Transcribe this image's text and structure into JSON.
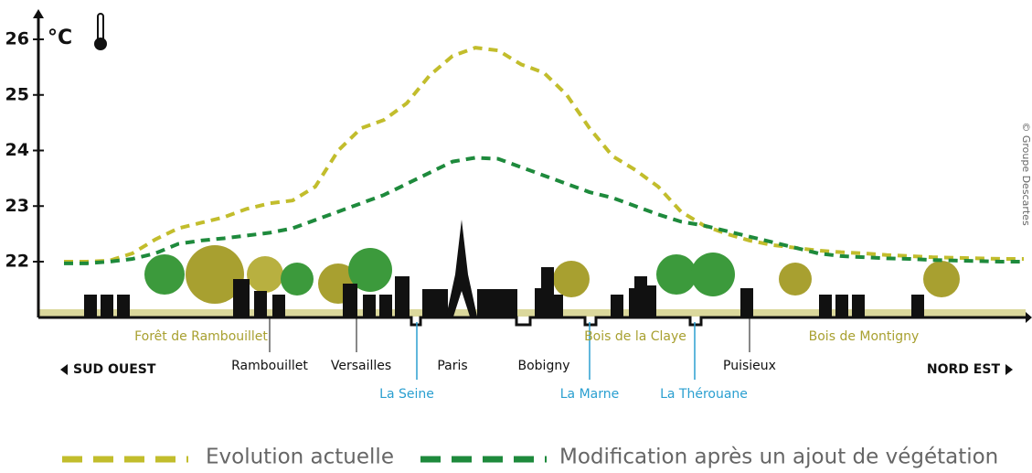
{
  "chart_data": {
    "type": "line",
    "unit": "°C",
    "direction_left": "SUD OUEST",
    "direction_right": "NORD EST",
    "credit": "© Groupe Descartes",
    "categories": [
      null,
      null,
      null,
      null,
      null,
      null,
      "Forêt de Rambouillet",
      null,
      null,
      "Rambouillet",
      null,
      null,
      null,
      "Versailles",
      null,
      "La Seine",
      null,
      "Paris",
      null,
      null,
      null,
      "Bobigny",
      null,
      "La Marne",
      null,
      "Bois de la Claye",
      null,
      null,
      "La Thérouane",
      null,
      "Puisieux",
      null,
      null,
      null,
      null,
      "Bois de Montigny",
      null,
      null,
      null,
      null,
      null,
      null,
      null
    ],
    "category_colors": [
      null,
      null,
      null,
      null,
      null,
      null,
      "#a8a030",
      null,
      null,
      "#111111",
      null,
      null,
      null,
      "#111111",
      null,
      "#2a9fd0",
      null,
      "#111111",
      null,
      null,
      null,
      "#111111",
      null,
      "#2a9fd0",
      null,
      "#a8a030",
      null,
      null,
      "#2a9fd0",
      null,
      "#111111",
      null,
      null,
      null,
      null,
      "#a8a030",
      null,
      null,
      null,
      null,
      null,
      null,
      null
    ],
    "series": [
      {
        "name": "Evolution actuelle",
        "color": "#c2bd2c",
        "values": [
          22.0,
          22.0,
          22.02,
          22.15,
          22.4,
          22.6,
          22.7,
          22.8,
          22.95,
          23.05,
          23.1,
          23.35,
          24.0,
          24.4,
          24.55,
          24.85,
          25.35,
          25.7,
          25.85,
          25.8,
          25.55,
          25.4,
          25.0,
          24.4,
          23.9,
          23.65,
          23.35,
          22.9,
          22.65,
          22.5,
          22.38,
          22.3,
          22.25,
          22.2,
          22.17,
          22.15,
          22.12,
          22.1,
          22.08,
          22.07,
          22.06,
          22.05,
          22.05
        ]
      },
      {
        "name": "Modification après un ajout de végétation",
        "color": "#1e8a3c",
        "values": [
          21.97,
          21.97,
          22.0,
          22.05,
          22.15,
          22.32,
          22.38,
          22.42,
          22.47,
          22.52,
          22.6,
          22.75,
          22.9,
          23.05,
          23.2,
          23.4,
          23.6,
          23.8,
          23.87,
          23.85,
          23.7,
          23.55,
          23.4,
          23.25,
          23.15,
          23.0,
          22.85,
          22.72,
          22.65,
          22.55,
          22.45,
          22.35,
          22.25,
          22.15,
          22.1,
          22.08,
          22.06,
          22.05,
          22.03,
          22.02,
          22.01,
          22.0,
          22.0
        ]
      }
    ],
    "ylim": [
      21,
      26.4
    ],
    "yticks": [
      22,
      23,
      24,
      25,
      26
    ],
    "grid": false
  }
}
